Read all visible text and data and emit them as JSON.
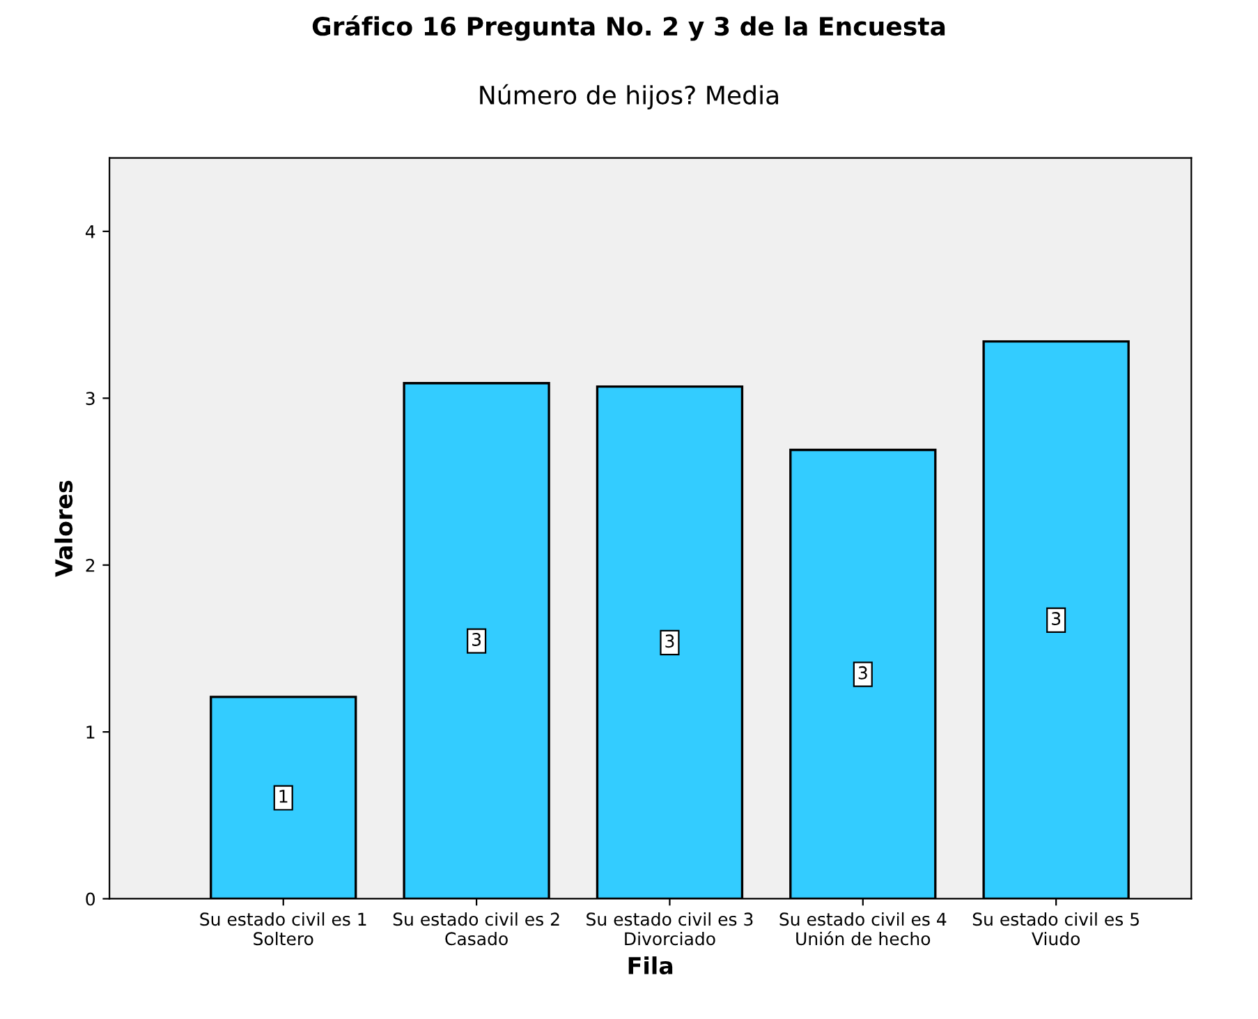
{
  "chart_data": {
    "type": "bar",
    "title": "Gráfico 16 Pregunta No. 2 y 3 de la Encuesta",
    "subtitle": "Número de hijos? Media",
    "xlabel": "Fila",
    "ylabel": "Valores",
    "categories": [
      "Su estado civil es 1\nSoltero",
      "Su estado civil es 2\nCasado",
      "Su estado civil es 3\nDivorciado",
      "Su estado civil es 4\nUnión de hecho",
      "Su estado civil es 5\nViudo"
    ],
    "values": [
      1.21,
      3.09,
      3.07,
      2.69,
      3.34
    ],
    "value_labels": [
      "1",
      "3",
      "3",
      "3",
      "3"
    ],
    "color": "#33ccff",
    "ylim": [
      0,
      4.44
    ],
    "yticks": [
      0,
      1,
      2,
      3,
      4
    ],
    "grid": false
  }
}
